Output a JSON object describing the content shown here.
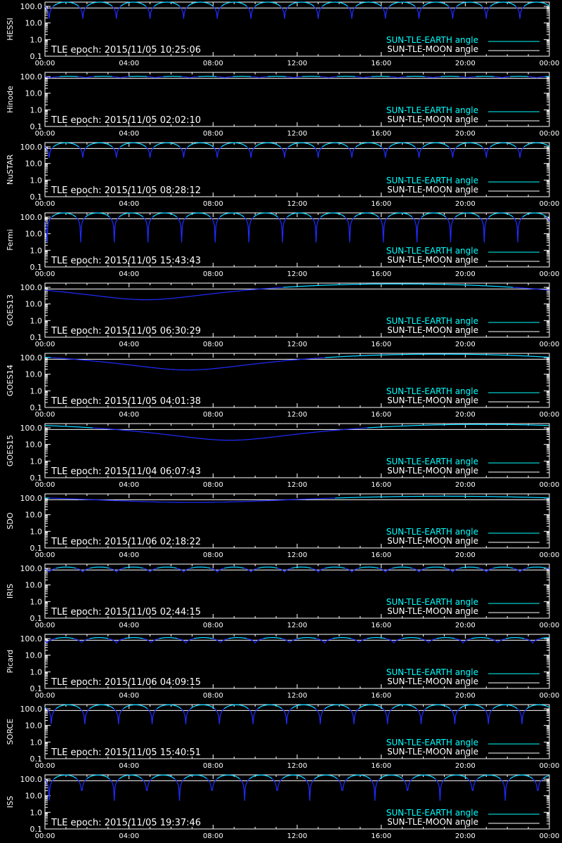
{
  "colors": {
    "background": "#000000",
    "axes": "#ffffff",
    "earth_curve": "#1f2cff",
    "earth_legend": "#00ffff",
    "moon_curve": "#ffffff"
  },
  "legend": {
    "earth": "SUN-TLE-EARTH angle",
    "moon": "SUN-TLE-MOON angle"
  },
  "x_ticks": [
    "00:00",
    "04:00",
    "08:00",
    "12:00",
    "16:00",
    "20:00",
    "00:00"
  ],
  "y_ticks": [
    "100.0",
    "10.0",
    "1.0",
    "0.1"
  ],
  "chart_data": [
    {
      "type": "line",
      "ylabel": "HESSI",
      "epoch_label": "TLE epoch: 2015/11/05 10:25:06",
      "x_range_hours": [
        0,
        24
      ],
      "y_scale": "log",
      "ylim": [
        0.1,
        180
      ],
      "pattern": "orbital",
      "period_hours": 1.6,
      "phase_hours": 0.2,
      "min_deg": 18,
      "max_deg": 180,
      "series": [
        {
          "name": "SUN-TLE-EARTH angle"
        },
        {
          "name": "SUN-TLE-MOON angle",
          "constant_deg": 80
        }
      ]
    },
    {
      "type": "line",
      "ylabel": "Hinode",
      "epoch_label": "TLE epoch: 2015/11/05 02:02:10",
      "x_range_hours": [
        0,
        24
      ],
      "y_scale": "log",
      "ylim": [
        0.1,
        180
      ],
      "pattern": "orbital",
      "period_hours": 1.65,
      "phase_hours": 0.3,
      "min_deg": 85,
      "max_deg": 105,
      "series": [
        {
          "name": "SUN-TLE-EARTH angle"
        },
        {
          "name": "SUN-TLE-MOON angle",
          "constant_deg": 80
        }
      ]
    },
    {
      "type": "line",
      "ylabel": "NuSTAR",
      "epoch_label": "TLE epoch: 2015/11/05 08:28:12",
      "x_range_hours": [
        0,
        24
      ],
      "y_scale": "log",
      "ylim": [
        0.1,
        180
      ],
      "pattern": "orbital",
      "period_hours": 1.6,
      "phase_hours": 0.2,
      "min_deg": 22,
      "max_deg": 175,
      "series": [
        {
          "name": "SUN-TLE-EARTH angle"
        },
        {
          "name": "SUN-TLE-MOON angle",
          "constant_deg": 80
        }
      ]
    },
    {
      "type": "line",
      "ylabel": "Fermi",
      "epoch_label": "TLE epoch: 2015/11/05 15:43:43",
      "x_range_hours": [
        0,
        24
      ],
      "y_scale": "log",
      "ylim": [
        0.1,
        180
      ],
      "pattern": "orbital",
      "period_hours": 1.6,
      "phase_hours": 0.1,
      "min_deg": 3,
      "max_deg": 178,
      "series": [
        {
          "name": "SUN-TLE-EARTH angle"
        },
        {
          "name": "SUN-TLE-MOON angle",
          "constant_deg": 80
        }
      ]
    },
    {
      "type": "line",
      "ylabel": "GOES13",
      "epoch_label": "TLE epoch: 2015/11/05 06:30:29",
      "x_range_hours": [
        0,
        24
      ],
      "y_scale": "log",
      "ylim": [
        0.1,
        180
      ],
      "pattern": "geo",
      "min_hour": 4.8,
      "min_deg": 18,
      "max_hour": 16.8,
      "max_deg": 162,
      "series": [
        {
          "name": "SUN-TLE-EARTH angle"
        },
        {
          "name": "SUN-TLE-MOON angle",
          "constant_deg": 80
        }
      ]
    },
    {
      "type": "line",
      "ylabel": "GOES14",
      "epoch_label": "TLE epoch: 2015/11/05 04:01:38",
      "x_range_hours": [
        0,
        24
      ],
      "y_scale": "log",
      "ylim": [
        0.1,
        180
      ],
      "pattern": "geo",
      "min_hour": 6.8,
      "min_deg": 18,
      "max_hour": 18.8,
      "max_deg": 162,
      "series": [
        {
          "name": "SUN-TLE-EARTH angle"
        },
        {
          "name": "SUN-TLE-MOON angle",
          "constant_deg": 80
        }
      ]
    },
    {
      "type": "line",
      "ylabel": "GOES15",
      "epoch_label": "TLE epoch: 2015/11/04 06:07:43",
      "x_range_hours": [
        0,
        24
      ],
      "y_scale": "log",
      "ylim": [
        0.1,
        180
      ],
      "pattern": "geo",
      "min_hour": 8.8,
      "min_deg": 18,
      "max_hour": 20.8,
      "max_deg": 162,
      "series": [
        {
          "name": "SUN-TLE-EARTH angle"
        },
        {
          "name": "SUN-TLE-MOON angle",
          "constant_deg": 80
        }
      ]
    },
    {
      "type": "line",
      "ylabel": "SDO",
      "epoch_label": "TLE epoch: 2015/11/06 02:18:22",
      "x_range_hours": [
        0,
        24
      ],
      "y_scale": "log",
      "ylim": [
        0.1,
        180
      ],
      "pattern": "geo",
      "min_hour": 7.0,
      "min_deg": 55,
      "max_hour": 19.0,
      "max_deg": 130,
      "series": [
        {
          "name": "SUN-TLE-EARTH angle"
        },
        {
          "name": "SUN-TLE-MOON angle",
          "constant_deg": 80
        }
      ]
    },
    {
      "type": "line",
      "ylabel": "IRIS",
      "epoch_label": "TLE epoch: 2015/11/05 02:44:15",
      "x_range_hours": [
        0,
        24
      ],
      "y_scale": "log",
      "ylim": [
        0.1,
        180
      ],
      "pattern": "orbital",
      "period_hours": 1.6,
      "phase_hours": 0.2,
      "min_deg": 60,
      "max_deg": 120,
      "series": [
        {
          "name": "SUN-TLE-EARTH angle"
        },
        {
          "name": "SUN-TLE-MOON angle",
          "constant_deg": 80
        }
      ]
    },
    {
      "type": "line",
      "ylabel": "Picard",
      "epoch_label": "TLE epoch: 2015/11/06 04:09:15",
      "x_range_hours": [
        0,
        24
      ],
      "y_scale": "log",
      "ylim": [
        0.1,
        180
      ],
      "pattern": "orbital",
      "period_hours": 1.65,
      "phase_hours": 0.1,
      "min_deg": 55,
      "max_deg": 115,
      "series": [
        {
          "name": "SUN-TLE-EARTH angle"
        },
        {
          "name": "SUN-TLE-MOON angle",
          "constant_deg": 80
        }
      ]
    },
    {
      "type": "line",
      "ylabel": "SORCE",
      "epoch_label": "TLE epoch: 2015/11/05 15:40:51",
      "x_range_hours": [
        0,
        24
      ],
      "y_scale": "log",
      "ylim": [
        0.1,
        180
      ],
      "pattern": "orbital",
      "period_hours": 1.6,
      "phase_hours": 0.3,
      "min_deg": 12,
      "max_deg": 175,
      "series": [
        {
          "name": "SUN-TLE-EARTH angle"
        },
        {
          "name": "SUN-TLE-MOON angle",
          "constant_deg": 80
        }
      ]
    },
    {
      "type": "line",
      "ylabel": "ISS",
      "epoch_label": "TLE epoch: 2015/11/05 19:37:46",
      "x_range_hours": [
        0,
        24
      ],
      "y_scale": "log",
      "ylim": [
        0.1,
        180
      ],
      "pattern": "orbital",
      "period_hours": 1.55,
      "phase_hours": 0.2,
      "min_deg": 5,
      "max_deg": 175,
      "series": [
        {
          "name": "SUN-TLE-EARTH angle"
        },
        {
          "name": "SUN-TLE-MOON angle",
          "constant_deg": 80
        }
      ]
    }
  ]
}
